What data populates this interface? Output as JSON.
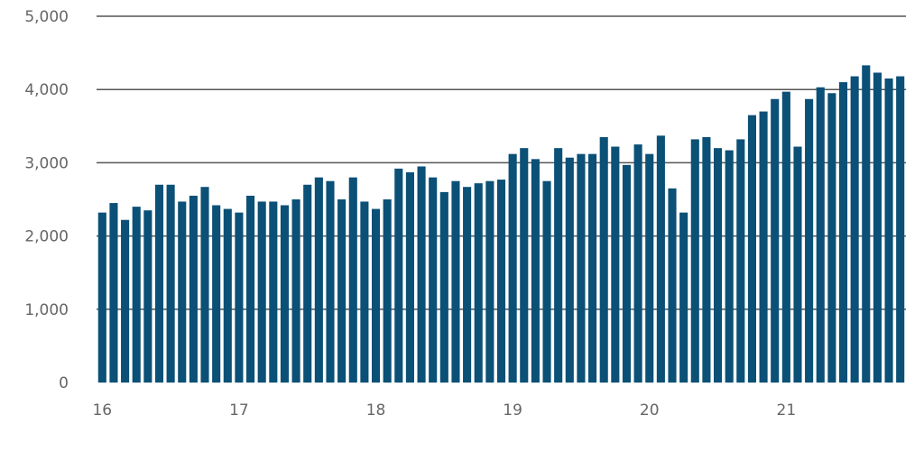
{
  "chart_data": {
    "type": "bar",
    "title": "",
    "xlabel": "",
    "ylabel": "",
    "ylim": [
      0,
      5000
    ],
    "yticks": [
      {
        "value": 0,
        "label": "0"
      },
      {
        "value": 1000,
        "label": "1,000"
      },
      {
        "value": 2000,
        "label": "2,000"
      },
      {
        "value": 3000,
        "label": "3,000"
      },
      {
        "value": 4000,
        "label": "4,000"
      },
      {
        "value": 5000,
        "label": "5,000"
      }
    ],
    "xtick_labels": [
      "16",
      "17",
      "18",
      "19",
      "20",
      "21"
    ],
    "categories": [
      "2016-01",
      "2016-02",
      "2016-03",
      "2016-04",
      "2016-05",
      "2016-06",
      "2016-07",
      "2016-08",
      "2016-09",
      "2016-10",
      "2016-11",
      "2016-12",
      "2017-01",
      "2017-02",
      "2017-03",
      "2017-04",
      "2017-05",
      "2017-06",
      "2017-07",
      "2017-08",
      "2017-09",
      "2017-10",
      "2017-11",
      "2017-12",
      "2018-01",
      "2018-02",
      "2018-03",
      "2018-04",
      "2018-05",
      "2018-06",
      "2018-07",
      "2018-08",
      "2018-09",
      "2018-10",
      "2018-11",
      "2018-12",
      "2019-01",
      "2019-02",
      "2019-03",
      "2019-04",
      "2019-05",
      "2019-06",
      "2019-07",
      "2019-08",
      "2019-09",
      "2019-10",
      "2019-11",
      "2019-12",
      "2020-01",
      "2020-02",
      "2020-03",
      "2020-04",
      "2020-05",
      "2020-06",
      "2020-07",
      "2020-08",
      "2020-09",
      "2020-10",
      "2020-11",
      "2020-12",
      "2021-01",
      "2021-02",
      "2021-03",
      "2021-04",
      "2021-05",
      "2021-06",
      "2021-07",
      "2021-08",
      "2021-09",
      "2021-10",
      "2021-11"
    ],
    "values": [
      2320,
      2450,
      2220,
      2400,
      2350,
      2700,
      2700,
      2470,
      2550,
      2670,
      2420,
      2370,
      2320,
      2550,
      2470,
      2470,
      2420,
      2500,
      2700,
      2800,
      2750,
      2500,
      2800,
      2470,
      2370,
      2500,
      2920,
      2870,
      2950,
      2800,
      2600,
      2750,
      2670,
      2720,
      2750,
      2770,
      3120,
      3200,
      3050,
      2750,
      3200,
      3070,
      3120,
      3120,
      3350,
      3220,
      2970,
      3250,
      3120,
      3370,
      2650,
      2320,
      3320,
      3350,
      3200,
      3170,
      3320,
      3650,
      3700,
      3870,
      3970,
      3220,
      3870,
      4030,
      3950,
      4100,
      4180,
      4330,
      4230,
      4150,
      4180
    ],
    "grid": true,
    "bar_color": "#0b5076",
    "grid_color": "#555555",
    "text_color": "#666666"
  }
}
